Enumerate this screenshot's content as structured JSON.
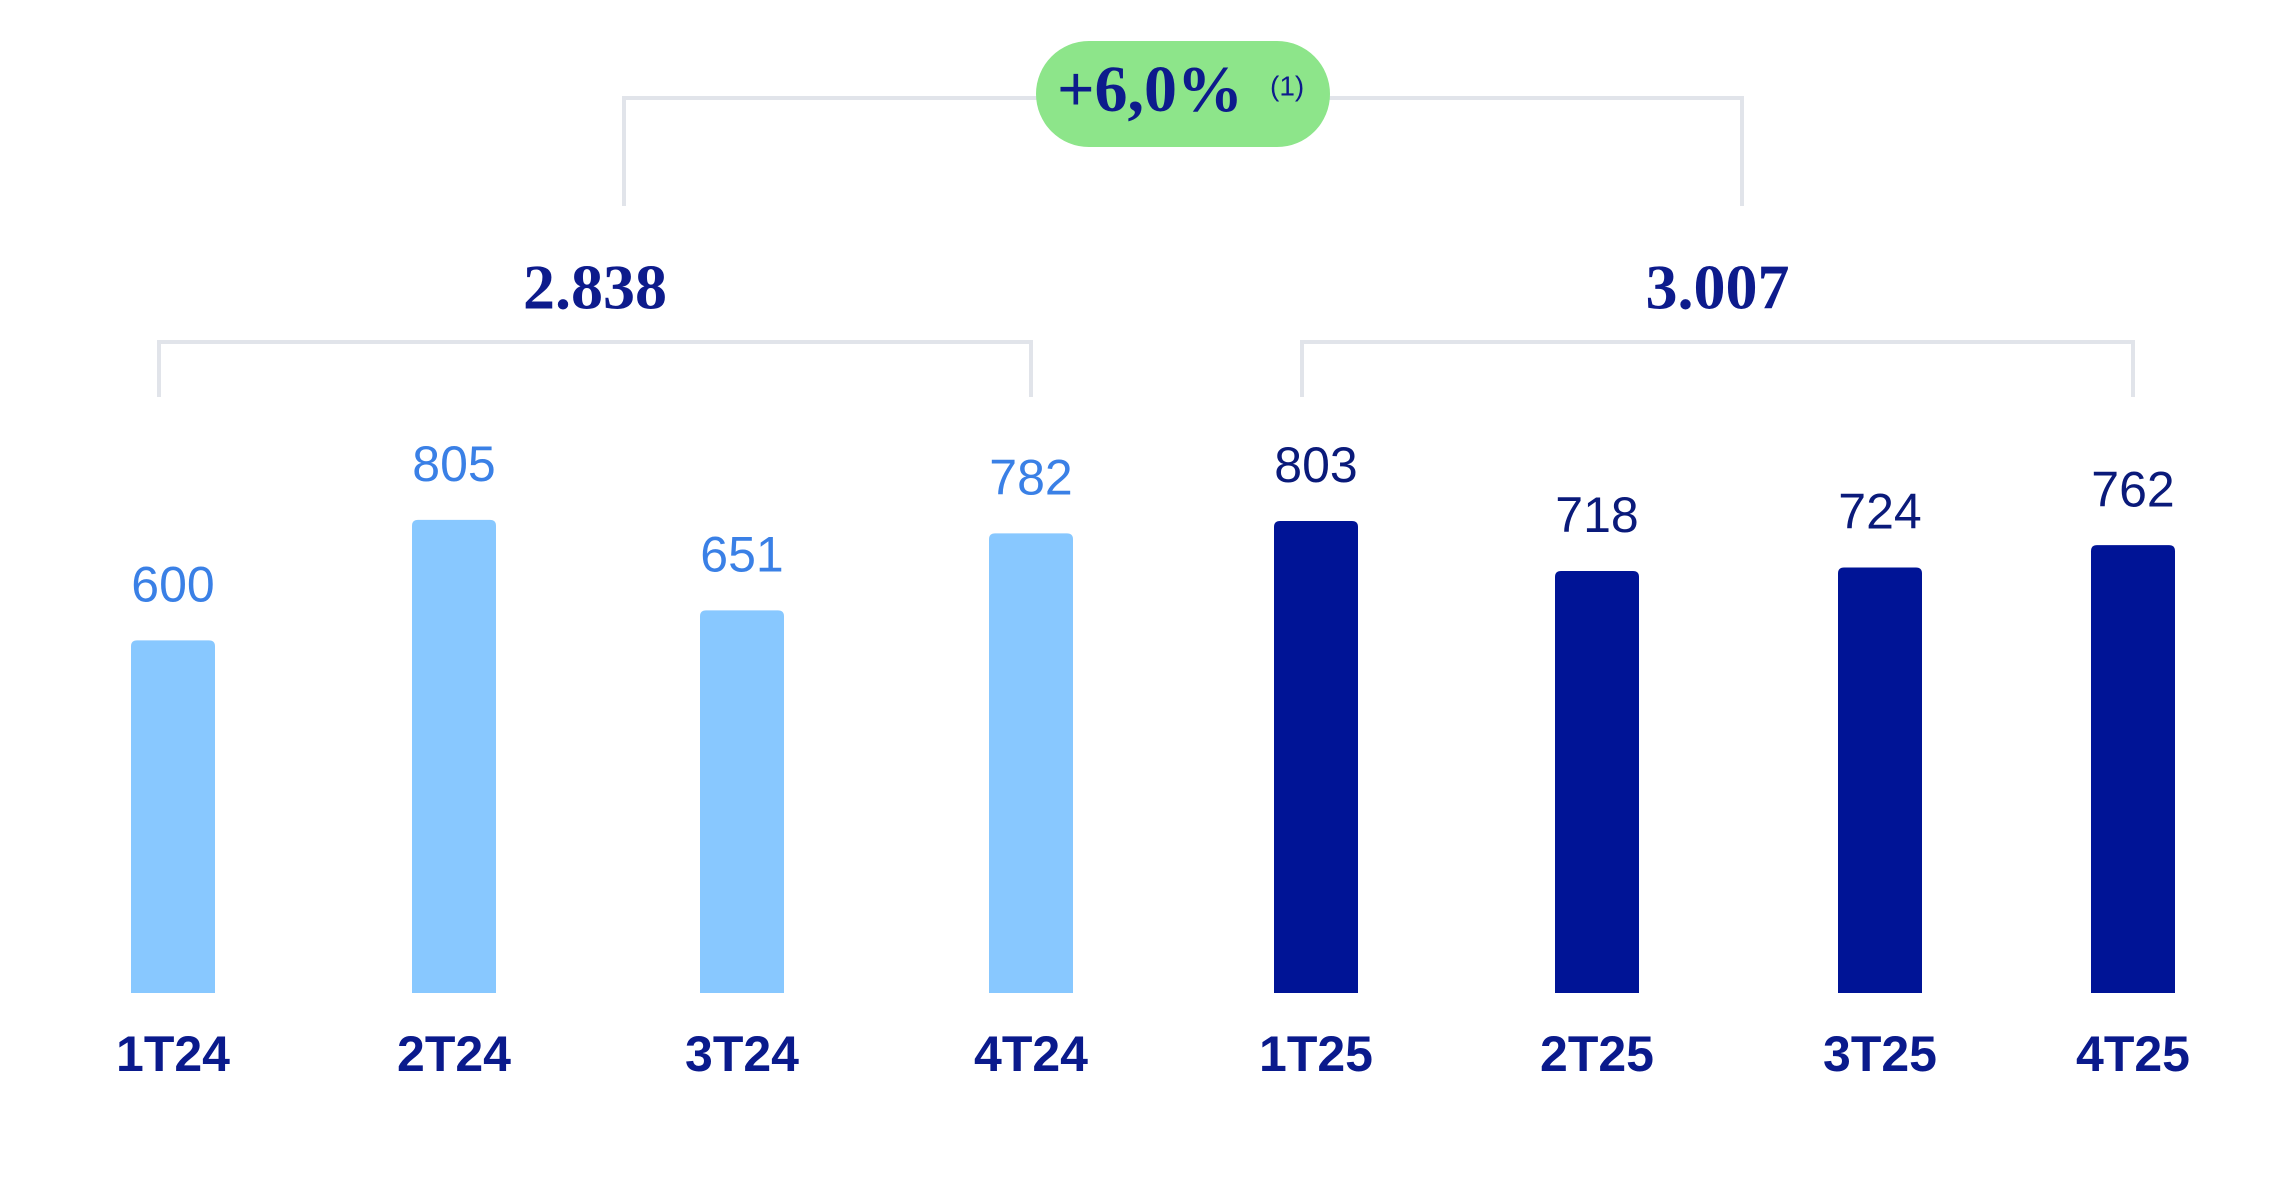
{
  "chart_data": {
    "type": "bar",
    "categories": [
      "1T24",
      "2T24",
      "3T24",
      "4T24",
      "1T25",
      "2T25",
      "3T25",
      "4T25"
    ],
    "values": [
      600,
      805,
      651,
      782,
      803,
      718,
      724,
      762
    ],
    "colors": [
      "#88c8ff",
      "#88c8ff",
      "#88c8ff",
      "#88c8ff",
      "#001496",
      "#001496",
      "#001496",
      "#001496"
    ],
    "value_label_colors": [
      "#3a80e6",
      "#3a80e6",
      "#3a80e6",
      "#3a80e6",
      "#0a1a7a",
      "#0a1a7a",
      "#0a1a7a",
      "#0a1a7a"
    ],
    "ylim": [
      0,
      900
    ],
    "groups": [
      {
        "label": "2.838"
      },
      {
        "label": "3.007"
      }
    ],
    "growth": {
      "label": "+6,0%",
      "note": "(1)",
      "color": "#8de58a"
    }
  }
}
